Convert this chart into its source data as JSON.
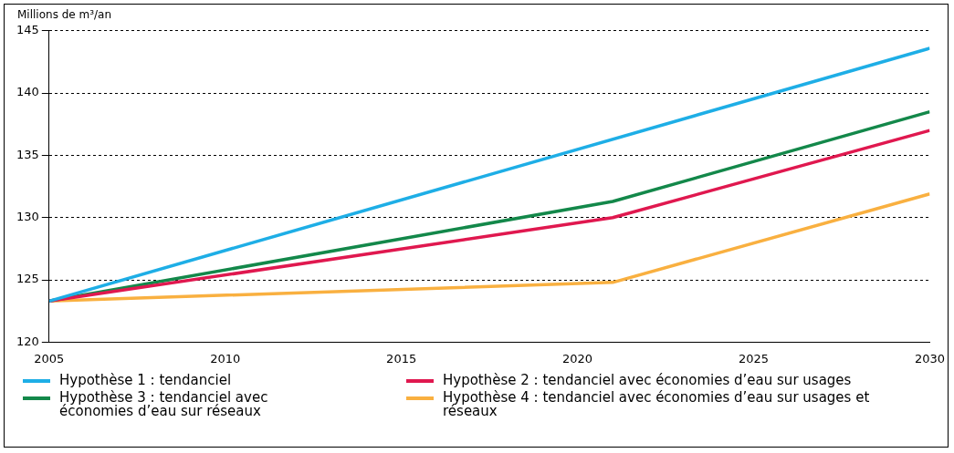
{
  "chart_data": {
    "type": "line",
    "ylabel": "Millions de m³/an",
    "series": [
      {
        "name": "Hypothèse 1 : tendanciel",
        "color": "#1eaee6",
        "x": [
          2005,
          2030
        ],
        "values": [
          123.3,
          143.6
        ]
      },
      {
        "name": "Hypothèse 2 : tendanciel avec économies d’eau sur usages",
        "color": "#e0184f",
        "x": [
          2005,
          2021,
          2030
        ],
        "values": [
          123.3,
          130.0,
          137.0
        ]
      },
      {
        "name": "Hypothèse 3 : tendanciel avec économies d’eau sur réseaux",
        "color": "#13884a",
        "x": [
          2005,
          2021,
          2030
        ],
        "values": [
          123.3,
          131.3,
          138.5
        ]
      },
      {
        "name": "Hypothèse 4 : tendanciel avec économies d’eau sur usages et réseaux",
        "color": "#f9b040",
        "x": [
          2005,
          2021,
          2030
        ],
        "values": [
          123.3,
          124.8,
          131.9
        ]
      }
    ],
    "xlim": [
      2005,
      2030
    ],
    "xticks": [
      2005,
      2010,
      2015,
      2020,
      2025,
      2030
    ],
    "ylim": [
      120,
      145
    ],
    "yticks": [
      120,
      125,
      130,
      135,
      140,
      145
    ],
    "grid": "y",
    "legend": "bottom",
    "marker": "none",
    "line_style": "solid"
  }
}
